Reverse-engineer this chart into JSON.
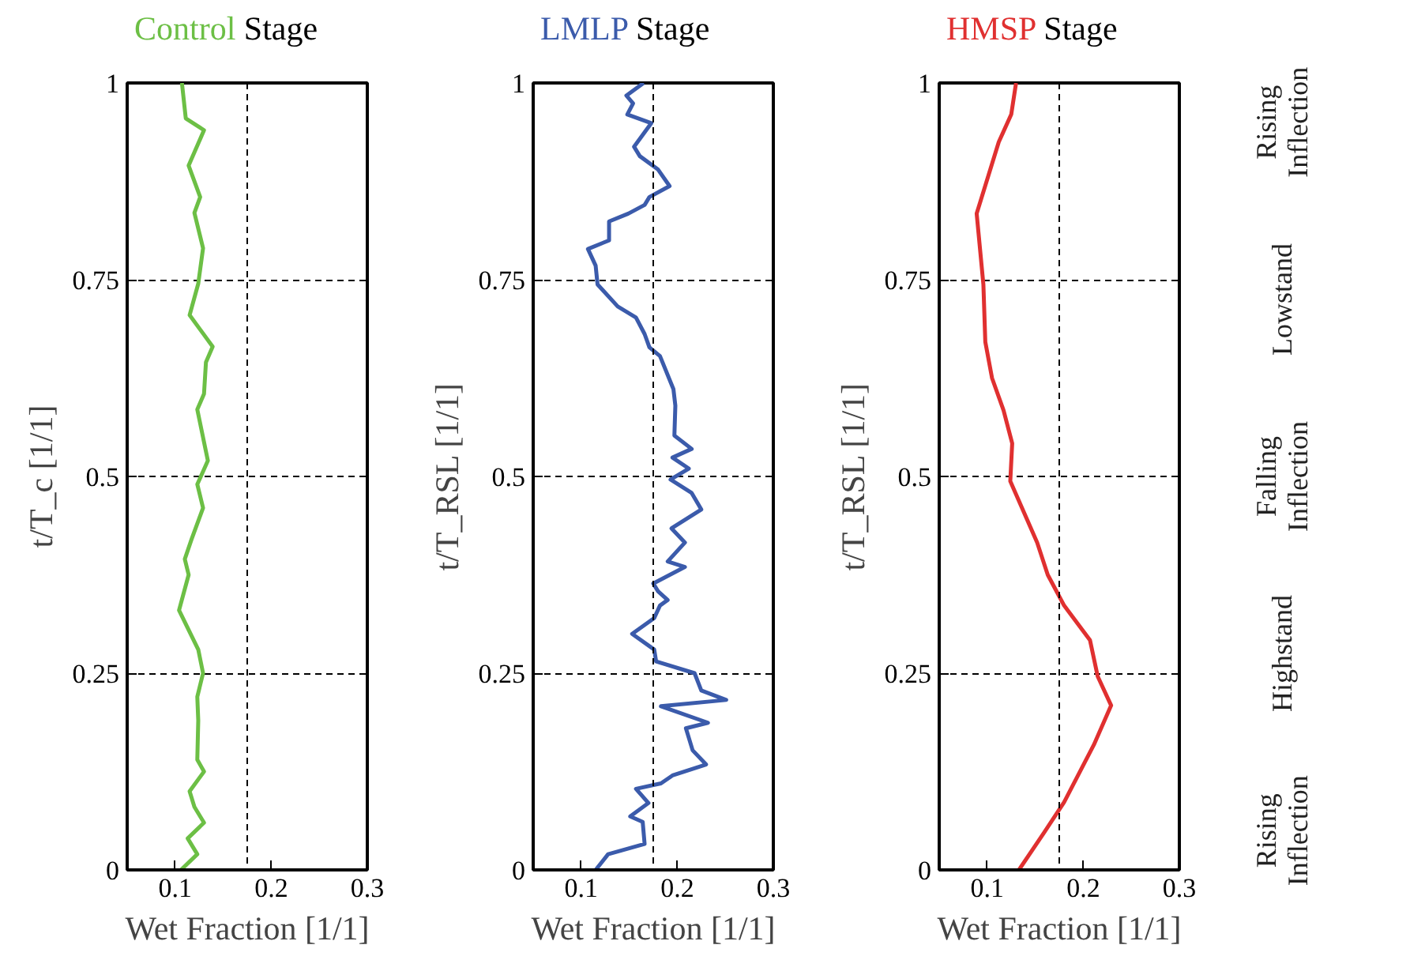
{
  "chart_data": [
    {
      "type": "line",
      "title": "Stage",
      "xlabel": "Wet Fraction [1/1]",
      "ylabel": "t/T_c [1/1]",
      "xlim": [
        0.05,
        0.3
      ],
      "ylim": [
        0,
        1
      ],
      "xticks": [
        0.1,
        0.2,
        0.3
      ],
      "yticks": [
        0,
        0.25,
        0.5,
        0.75,
        1
      ],
      "grid": "y",
      "ref_lines": [
        {
          "axis": "x",
          "value": 0.175,
          "line_style": "dashed"
        }
      ],
      "series": [
        {
          "name": "Control",
          "color": "#6cbf45",
          "x": [
            0.106,
            0.123,
            0.113,
            0.13,
            0.12,
            0.115,
            0.13,
            0.123,
            0.124,
            0.123,
            0.129,
            0.124,
            0.104,
            0.114,
            0.11,
            0.117,
            0.129,
            0.123,
            0.134,
            0.123,
            0.13,
            0.132,
            0.139,
            0.115,
            0.124,
            0.129,
            0.12,
            0.126,
            0.114,
            0.13,
            0.111,
            0.107
          ],
          "values": [
            0,
            0.02,
            0.04,
            0.06,
            0.08,
            0.1,
            0.125,
            0.14,
            0.19,
            0.22,
            0.25,
            0.28,
            0.33,
            0.375,
            0.395,
            0.42,
            0.46,
            0.49,
            0.52,
            0.585,
            0.605,
            0.645,
            0.665,
            0.705,
            0.745,
            0.79,
            0.835,
            0.855,
            0.895,
            0.94,
            0.955,
            1.0
          ]
        }
      ]
    },
    {
      "type": "line",
      "title": "Stage",
      "xlabel": "Wet Fraction [1/1]",
      "ylabel": "t/T_RSL [1/1]",
      "xlim": [
        0.05,
        0.3
      ],
      "ylim": [
        0,
        1
      ],
      "xticks": [
        0.1,
        0.2,
        0.3
      ],
      "yticks": [
        0,
        0.25,
        0.5,
        0.75,
        1
      ],
      "grid": "y",
      "ref_lines": [
        {
          "axis": "x",
          "value": 0.175,
          "line_style": "dashed"
        }
      ],
      "series": [
        {
          "name": "LMLP",
          "color": "#3b5bab",
          "x": [
            0.115,
            0.128,
            0.166,
            0.164,
            0.151,
            0.17,
            0.157,
            0.183,
            0.195,
            0.23,
            0.216,
            0.209,
            0.232,
            0.183,
            0.251,
            0.225,
            0.218,
            0.178,
            0.176,
            0.153,
            0.176,
            0.182,
            0.19,
            0.18,
            0.175,
            0.208,
            0.19,
            0.208,
            0.194,
            0.225,
            0.215,
            0.193,
            0.212,
            0.195,
            0.215,
            0.197,
            0.198,
            0.196,
            0.182,
            0.171,
            0.166,
            0.157,
            0.138,
            0.117,
            0.115,
            0.107,
            0.129,
            0.129,
            0.149,
            0.166,
            0.171,
            0.192,
            0.18,
            0.161,
            0.155,
            0.173,
            0.148,
            0.154,
            0.147,
            0.165
          ],
          "values": [
            0,
            0.02,
            0.033,
            0.061,
            0.068,
            0.085,
            0.103,
            0.11,
            0.12,
            0.134,
            0.152,
            0.18,
            0.187,
            0.208,
            0.216,
            0.228,
            0.25,
            0.265,
            0.28,
            0.3,
            0.32,
            0.336,
            0.343,
            0.354,
            0.364,
            0.385,
            0.392,
            0.416,
            0.434,
            0.458,
            0.479,
            0.496,
            0.51,
            0.524,
            0.535,
            0.552,
            0.59,
            0.611,
            0.653,
            0.664,
            0.681,
            0.702,
            0.716,
            0.744,
            0.768,
            0.789,
            0.8,
            0.824,
            0.834,
            0.845,
            0.855,
            0.869,
            0.89,
            0.907,
            0.919,
            0.949,
            0.96,
            0.974,
            0.984,
            1.0
          ]
        }
      ]
    },
    {
      "type": "line",
      "title": "Stage",
      "xlabel": "Wet Fraction [1/1]",
      "ylabel": "t/T_RSL [1/1]",
      "xlim": [
        0.05,
        0.3
      ],
      "ylim": [
        0,
        1
      ],
      "xticks": [
        0.1,
        0.2,
        0.3
      ],
      "yticks": [
        0,
        0.25,
        0.5,
        0.75,
        1
      ],
      "grid": "y",
      "ref_lines": [
        {
          "axis": "x",
          "value": 0.175,
          "line_style": "dashed"
        }
      ],
      "annotations": [
        "Rising\nInflection",
        "Lowstand",
        "Falling\nInflection",
        "Highstand",
        "Rising\nInflection"
      ],
      "series": [
        {
          "name": "HMSP",
          "color": "#e03030",
          "x": [
            0.133,
            0.159,
            0.18,
            0.211,
            0.229,
            0.215,
            0.207,
            0.18,
            0.163,
            0.152,
            0.124,
            0.126,
            0.117,
            0.105,
            0.098,
            0.096,
            0.089,
            0.112,
            0.125,
            0.13
          ],
          "values": [
            0,
            0.047,
            0.086,
            0.159,
            0.209,
            0.246,
            0.292,
            0.336,
            0.375,
            0.416,
            0.494,
            0.542,
            0.584,
            0.625,
            0.671,
            0.744,
            0.834,
            0.925,
            0.96,
            1.0
          ]
        }
      ]
    }
  ]
}
